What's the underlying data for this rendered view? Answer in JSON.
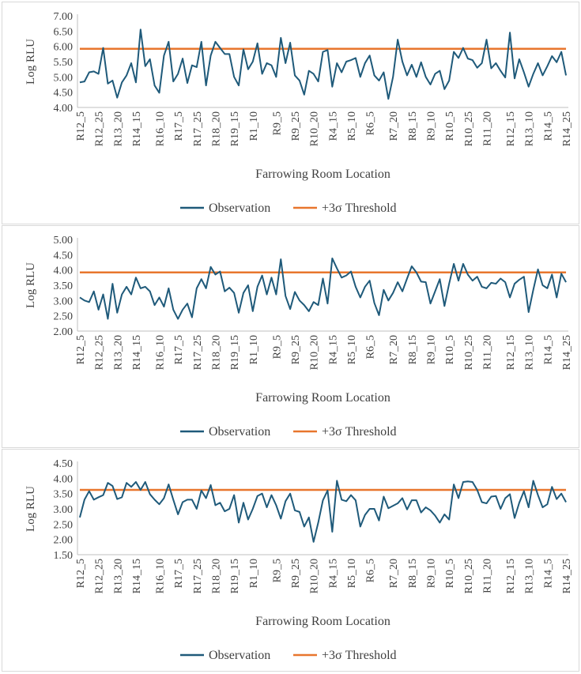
{
  "colors": {
    "observation": "#1f5a7a",
    "threshold": "#e8762d",
    "axis": "#bfbfbf",
    "text": "#404040"
  },
  "legend": {
    "observation": "Observation",
    "threshold": "+3σ Threshold"
  },
  "chart_data": [
    {
      "type": "line",
      "xlabel": "Farrowing Room Location",
      "ylabel": "Log RLU",
      "ylim": [
        4.0,
        7.0
      ],
      "yticks": [
        "4.00",
        "4.50",
        "5.00",
        "5.50",
        "6.00",
        "6.50",
        "7.00"
      ],
      "xtick_labels": [
        "R12_5",
        "R12_25",
        "R13_20",
        "R14_15",
        "R16_10",
        "R17_5",
        "R17_25",
        "R18_20",
        "R19_15",
        "R1_10",
        "R9_5",
        "R9_25",
        "R10_20",
        "R4_15",
        "R5_10",
        "R6_5",
        "R7_20",
        "R8_15",
        "R9_10",
        "R10_5",
        "R10_25",
        "R11_20",
        "R12_15",
        "R13_10",
        "R14_5",
        "R14_25"
      ],
      "threshold": 5.92,
      "series": [
        {
          "name": "Observation",
          "values": [
            4.82,
            4.85,
            5.15,
            5.18,
            5.1,
            5.95,
            4.78,
            4.88,
            4.32,
            4.82,
            5.05,
            5.45,
            4.82,
            6.55,
            5.35,
            5.58,
            4.72,
            4.48,
            5.7,
            6.15,
            4.85,
            5.1,
            5.6,
            4.8,
            5.38,
            5.32,
            6.15,
            4.72,
            5.7,
            6.15,
            5.95,
            5.75,
            5.75,
            5.0,
            4.72,
            5.9,
            5.25,
            5.5,
            6.1,
            5.1,
            5.45,
            5.38,
            5.0,
            6.28,
            5.45,
            6.12,
            5.05,
            4.88,
            4.42,
            5.2,
            5.1,
            4.85,
            5.82,
            5.88,
            4.68,
            5.45,
            5.15,
            5.5,
            5.55,
            5.62,
            5.0,
            5.45,
            5.7,
            5.05,
            4.88,
            5.15,
            4.28,
            5.0,
            6.22,
            5.5,
            5.05,
            5.4,
            5.0,
            5.48,
            5.0,
            4.75,
            5.1,
            5.2,
            4.6,
            4.88,
            5.82,
            5.62,
            5.95,
            5.6,
            5.55,
            5.3,
            5.45,
            6.22,
            5.28,
            5.45,
            5.2,
            4.98,
            6.45,
            4.95,
            5.58,
            5.15,
            4.68,
            5.1,
            5.45,
            5.05,
            5.35,
            5.68,
            5.48,
            5.82,
            5.05
          ]
        }
      ]
    },
    {
      "type": "line",
      "xlabel": "Farrowing Room Location",
      "ylabel": "Log RLU",
      "ylim": [
        2.0,
        5.0
      ],
      "yticks": [
        "2.00",
        "2.50",
        "3.00",
        "3.50",
        "4.00",
        "4.50",
        "5.00"
      ],
      "xtick_labels": [
        "R12_5",
        "R12_25",
        "R13_20",
        "R14_15",
        "R16_10",
        "R17_5",
        "R17_25",
        "R18_20",
        "R19_15",
        "R1_10",
        "R9_5",
        "R9_25",
        "R10_20",
        "R4_15",
        "R5_10",
        "R6_5",
        "R7_20",
        "R8_15",
        "R9_10",
        "R10_5",
        "R10_25",
        "R11_20",
        "R12_15",
        "R13_10",
        "R14_5",
        "R14_25"
      ],
      "threshold": 3.92,
      "series": [
        {
          "name": "Observation",
          "values": [
            3.1,
            3.0,
            2.95,
            3.3,
            2.7,
            3.2,
            2.4,
            3.55,
            2.6,
            3.2,
            3.45,
            3.2,
            3.75,
            3.4,
            3.45,
            3.3,
            2.85,
            3.1,
            2.8,
            3.4,
            2.7,
            2.4,
            2.7,
            2.9,
            2.45,
            3.4,
            3.7,
            3.4,
            4.1,
            3.85,
            3.95,
            3.3,
            3.42,
            3.25,
            2.6,
            3.25,
            3.5,
            2.65,
            3.45,
            3.82,
            3.2,
            3.75,
            3.2,
            4.35,
            3.15,
            2.72,
            3.28,
            3.0,
            2.85,
            2.65,
            2.95,
            2.85,
            3.72,
            2.9,
            4.38,
            4.05,
            3.75,
            3.82,
            3.95,
            3.45,
            3.1,
            3.45,
            3.65,
            2.92,
            2.52,
            3.35,
            3.0,
            3.25,
            3.6,
            3.3,
            3.72,
            4.12,
            3.92,
            3.62,
            3.6,
            2.9,
            3.3,
            3.7,
            2.82,
            3.55,
            4.2,
            3.65,
            4.2,
            3.85,
            3.65,
            3.78,
            3.45,
            3.4,
            3.58,
            3.55,
            3.72,
            3.6,
            3.1,
            3.55,
            3.68,
            3.78,
            2.62,
            3.35,
            4.02,
            3.5,
            3.4,
            3.85,
            3.1,
            3.88,
            3.6
          ]
        }
      ]
    },
    {
      "type": "line",
      "xlabel": "Farrowing Room Location",
      "ylabel": "Log RLU",
      "ylim": [
        1.5,
        4.5
      ],
      "yticks": [
        "1.50",
        "2.00",
        "2.50",
        "3.00",
        "3.50",
        "4.00",
        "4.50"
      ],
      "xtick_labels": [
        "R12_5",
        "R12_25",
        "R13_20",
        "R14_15",
        "R16_10",
        "R17_5",
        "R17_25",
        "R18_20",
        "R19_15",
        "R1_10",
        "R9_5",
        "R9_25",
        "R10_20",
        "R4_15",
        "R5_10",
        "R6_5",
        "R7_20",
        "R8_15",
        "R9_10",
        "R10_5",
        "R10_25",
        "R11_20",
        "R12_15",
        "R13_10",
        "R14_5",
        "R14_25"
      ],
      "threshold": 3.62,
      "series": [
        {
          "name": "Observation",
          "values": [
            2.72,
            3.3,
            3.58,
            3.3,
            3.38,
            3.45,
            3.85,
            3.75,
            3.32,
            3.38,
            3.85,
            3.72,
            3.88,
            3.62,
            3.88,
            3.48,
            3.3,
            3.15,
            3.35,
            3.8,
            3.3,
            2.82,
            3.22,
            3.3,
            3.3,
            3.0,
            3.6,
            3.35,
            3.78,
            3.12,
            3.2,
            2.92,
            3.0,
            3.45,
            2.55,
            3.2,
            2.65,
            3.0,
            3.42,
            3.5,
            3.05,
            3.45,
            3.12,
            2.68,
            3.25,
            3.5,
            2.95,
            2.9,
            2.42,
            2.72,
            1.92,
            2.55,
            3.28,
            3.6,
            2.25,
            3.92,
            3.3,
            3.25,
            3.45,
            3.28,
            2.42,
            2.8,
            3.0,
            3.0,
            2.62,
            3.4,
            3.02,
            3.1,
            3.18,
            3.35,
            2.98,
            3.28,
            3.28,
            2.88,
            3.05,
            2.95,
            2.78,
            2.55,
            2.82,
            2.65,
            3.8,
            3.35,
            3.88,
            3.9,
            3.88,
            3.62,
            3.22,
            3.18,
            3.4,
            3.42,
            3.0,
            3.35,
            3.48,
            2.7,
            3.2,
            3.58,
            3.05,
            3.92,
            3.45,
            3.05,
            3.15,
            3.72,
            3.32,
            3.5,
            3.22
          ]
        }
      ]
    }
  ]
}
